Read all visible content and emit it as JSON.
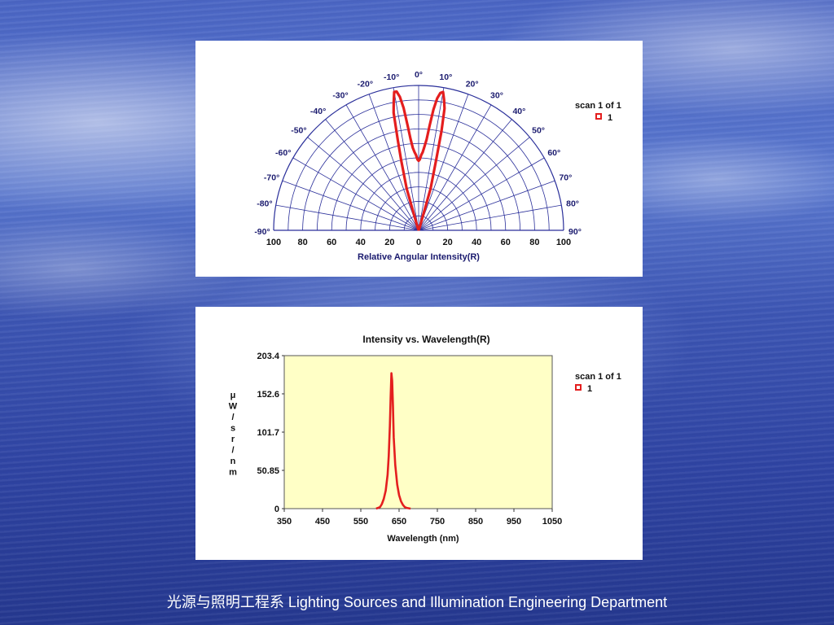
{
  "slide": {
    "footer_cn": "光源与照明工程系",
    "footer_en": "Lighting Sources and Illumination Engineering Department"
  },
  "chart_data": [
    {
      "type": "polar",
      "xlabel": "Relative Angular Intensity(R)",
      "radial_ticks": [
        "100",
        "80",
        "60",
        "40",
        "20",
        "0",
        "20",
        "40",
        "60",
        "80",
        "100"
      ],
      "angle_labels": [
        "-90°",
        "-80°",
        "-70°",
        "-60°",
        "-50°",
        "-40°",
        "-30°",
        "-20°",
        "-10°",
        "0°",
        "10°",
        "20°",
        "30°",
        "40°",
        "50°",
        "60°",
        "70°",
        "80°",
        "90°"
      ],
      "angle_values": [
        -90,
        -80,
        -70,
        -60,
        -50,
        -40,
        -30,
        -20,
        -10,
        0,
        10,
        20,
        30,
        40,
        50,
        60,
        70,
        80,
        90
      ],
      "rlim": [
        0,
        100
      ],
      "legend": {
        "title": "scan 1 of 1",
        "label": "1",
        "placement": "right"
      },
      "series": [
        {
          "name": "1",
          "color": "#e41e1e",
          "angles": [
            -90,
            -30,
            -20,
            -16,
            -14,
            -13,
            -12,
            -11,
            -10,
            -9,
            -8,
            -7,
            -6,
            -5,
            -4,
            -3,
            -2,
            -1,
            0,
            1,
            2,
            3,
            4,
            5,
            6,
            7,
            8,
            9,
            10,
            11,
            12,
            13,
            14,
            16,
            20,
            30,
            90
          ],
          "values": [
            0,
            0,
            2,
            30,
            50,
            64,
            83,
            90,
            97,
            97,
            93,
            85,
            73,
            63,
            57,
            54,
            52,
            49,
            48,
            49,
            52,
            54,
            58,
            63,
            73,
            84,
            92,
            96,
            97,
            92,
            86,
            70,
            50,
            30,
            2,
            0,
            0
          ]
        }
      ]
    },
    {
      "type": "line",
      "title": "Intensity vs. Wavelength(R)",
      "xlabel": "Wavelength (nm)",
      "ylabel": "μ W / s r / n m",
      "ylabel_chars": [
        "μ",
        "W",
        "/",
        "s",
        "r",
        "/",
        "n",
        "m"
      ],
      "xlim": [
        350,
        1050
      ],
      "ylim": [
        0,
        203.4
      ],
      "xticks": [
        350,
        450,
        550,
        650,
        750,
        850,
        950,
        1050
      ],
      "yticks": [
        "0",
        "50.85",
        "101.7",
        "152.6",
        "203.4"
      ],
      "ytick_values": [
        0,
        50.85,
        101.7,
        152.6,
        203.4
      ],
      "plot_bg": "#ffffc6",
      "legend": {
        "title": "scan 1 of 1",
        "label": "1",
        "placement": "right"
      },
      "series": [
        {
          "name": "1",
          "color": "#e41e1e",
          "x": [
            590,
            600,
            605,
            610,
            615,
            620,
            623,
            626,
            628,
            630,
            632,
            634,
            636,
            640,
            645,
            650,
            655,
            660,
            665,
            670,
            680
          ],
          "y": [
            0,
            2,
            6,
            13,
            24,
            45,
            70,
            110,
            150,
            180,
            170,
            135,
            95,
            58,
            32,
            18,
            10,
            5,
            2,
            1,
            0
          ]
        }
      ]
    }
  ]
}
